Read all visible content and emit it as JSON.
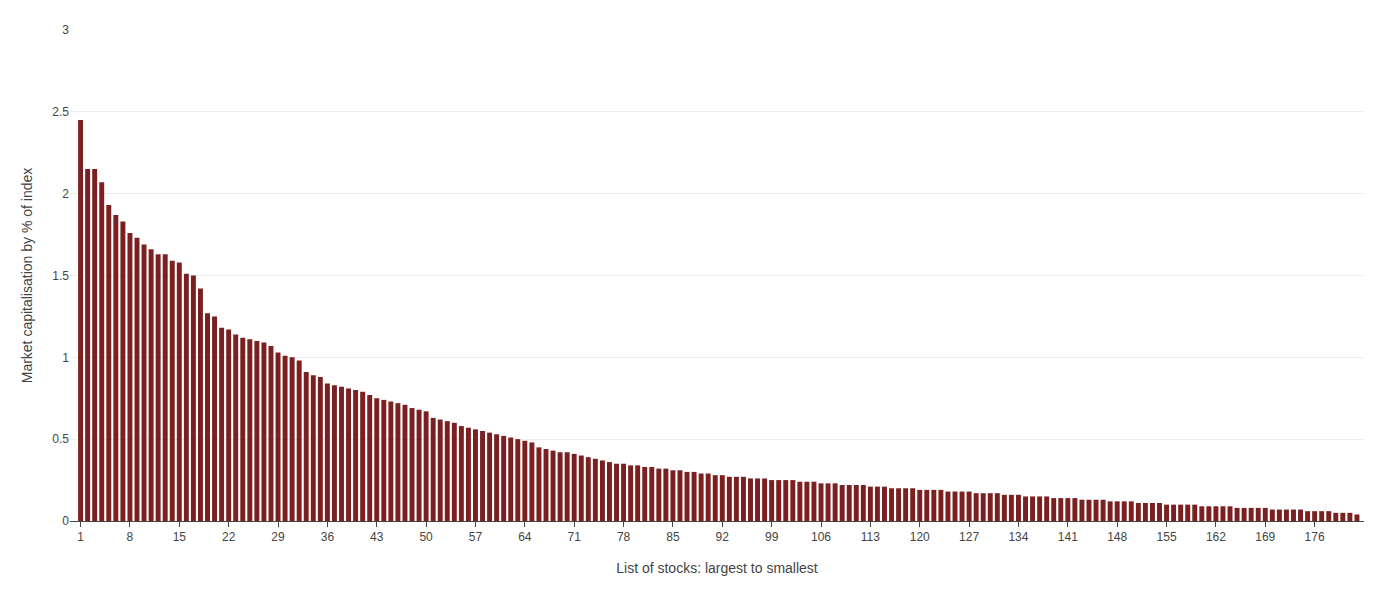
{
  "chart_data": {
    "type": "bar",
    "xlabel": "List of stocks: largest to smallest",
    "ylabel": "Market capitalisation by % of index",
    "color": "#7B2020",
    "grid": true,
    "x": [
      1,
      2,
      3,
      4,
      5,
      6,
      7,
      8,
      9,
      10,
      11,
      12,
      13,
      14,
      15,
      16,
      17,
      18,
      19,
      20,
      21,
      22,
      23,
      24,
      25,
      26,
      27,
      28,
      29,
      30,
      31,
      32,
      33,
      34,
      35,
      36,
      37,
      38,
      39,
      40,
      41,
      42,
      43,
      44,
      45,
      46,
      47,
      48,
      49,
      50,
      51,
      52,
      53,
      54,
      55,
      56,
      57,
      58,
      59,
      60,
      61,
      62,
      63,
      64,
      65,
      66,
      67,
      68,
      69,
      70,
      71,
      72,
      73,
      74,
      75,
      76,
      77,
      78,
      79,
      80,
      81,
      82,
      83,
      84,
      85,
      86,
      87,
      88,
      89,
      90,
      91,
      92,
      93,
      94,
      95,
      96,
      97,
      98,
      99,
      100,
      101,
      102,
      103,
      104,
      105,
      106,
      107,
      108,
      109,
      110,
      111,
      112,
      113,
      114,
      115,
      116,
      117,
      118,
      119,
      120,
      121,
      122,
      123,
      124,
      125,
      126,
      127,
      128,
      129,
      130,
      131,
      132,
      133,
      134,
      135,
      136,
      137,
      138,
      139,
      140,
      141,
      142,
      143,
      144,
      145,
      146,
      147,
      148,
      149,
      150,
      151,
      152,
      153,
      154,
      155,
      156,
      157,
      158,
      159,
      160,
      161,
      162,
      163,
      164,
      165,
      166,
      167,
      168,
      169,
      170,
      171,
      172,
      173,
      174,
      175,
      176,
      177,
      178,
      179,
      180,
      181,
      182
    ],
    "values": [
      2.45,
      2.15,
      2.15,
      2.07,
      1.93,
      1.87,
      1.83,
      1.76,
      1.73,
      1.69,
      1.66,
      1.63,
      1.63,
      1.59,
      1.58,
      1.51,
      1.5,
      1.42,
      1.27,
      1.25,
      1.18,
      1.17,
      1.14,
      1.12,
      1.11,
      1.1,
      1.09,
      1.07,
      1.03,
      1.01,
      1.0,
      0.98,
      0.91,
      0.89,
      0.88,
      0.84,
      0.83,
      0.82,
      0.81,
      0.8,
      0.79,
      0.77,
      0.75,
      0.74,
      0.73,
      0.72,
      0.71,
      0.69,
      0.68,
      0.67,
      0.63,
      0.62,
      0.61,
      0.6,
      0.58,
      0.57,
      0.56,
      0.55,
      0.54,
      0.53,
      0.52,
      0.51,
      0.5,
      0.49,
      0.48,
      0.45,
      0.44,
      0.43,
      0.42,
      0.42,
      0.41,
      0.4,
      0.39,
      0.38,
      0.37,
      0.36,
      0.35,
      0.35,
      0.34,
      0.34,
      0.33,
      0.33,
      0.32,
      0.32,
      0.31,
      0.31,
      0.3,
      0.3,
      0.29,
      0.29,
      0.28,
      0.28,
      0.27,
      0.27,
      0.27,
      0.26,
      0.26,
      0.26,
      0.25,
      0.25,
      0.25,
      0.25,
      0.24,
      0.24,
      0.24,
      0.23,
      0.23,
      0.23,
      0.22,
      0.22,
      0.22,
      0.22,
      0.21,
      0.21,
      0.21,
      0.2,
      0.2,
      0.2,
      0.2,
      0.19,
      0.19,
      0.19,
      0.19,
      0.18,
      0.18,
      0.18,
      0.18,
      0.17,
      0.17,
      0.17,
      0.17,
      0.16,
      0.16,
      0.16,
      0.15,
      0.15,
      0.15,
      0.15,
      0.14,
      0.14,
      0.14,
      0.14,
      0.13,
      0.13,
      0.13,
      0.13,
      0.12,
      0.12,
      0.12,
      0.12,
      0.11,
      0.11,
      0.11,
      0.11,
      0.1,
      0.1,
      0.1,
      0.1,
      0.1,
      0.09,
      0.09,
      0.09,
      0.09,
      0.09,
      0.08,
      0.08,
      0.08,
      0.08,
      0.08,
      0.07,
      0.07,
      0.07,
      0.07,
      0.07,
      0.06,
      0.06,
      0.06,
      0.06,
      0.05,
      0.05,
      0.05,
      0.04
    ],
    "xlim": [
      -0.5,
      183
    ],
    "xticks": [
      1,
      8,
      15,
      22,
      29,
      36,
      43,
      50,
      57,
      64,
      71,
      78,
      85,
      92,
      99,
      106,
      113,
      120,
      127,
      134,
      141,
      148,
      155,
      162,
      169,
      176
    ],
    "ylim": [
      0,
      3
    ],
    "yticks": [
      0,
      0.5,
      1,
      1.5,
      2,
      2.5,
      3
    ]
  }
}
